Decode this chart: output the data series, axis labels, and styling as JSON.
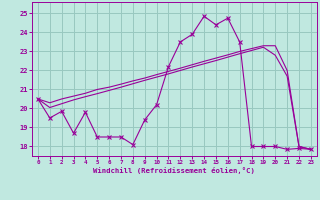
{
  "background_color": "#c0e8e0",
  "grid_color": "#98c8c0",
  "line_color": "#990099",
  "xlim": [
    -0.5,
    23.5
  ],
  "ylim": [
    17.5,
    25.6
  ],
  "xticks": [
    0,
    1,
    2,
    3,
    4,
    5,
    6,
    7,
    8,
    9,
    10,
    11,
    12,
    13,
    14,
    15,
    16,
    17,
    18,
    19,
    20,
    21,
    22,
    23
  ],
  "yticks": [
    18,
    19,
    20,
    21,
    22,
    23,
    24,
    25
  ],
  "xlabel": "Windchill (Refroidissement éolien,°C)",
  "s1_x": [
    0,
    1,
    2,
    3,
    4,
    5,
    6,
    7,
    8,
    9,
    10,
    11,
    12,
    13,
    14,
    15,
    16,
    17,
    18,
    19,
    20,
    21,
    22,
    23
  ],
  "s1_y": [
    20.5,
    19.5,
    19.85,
    18.7,
    19.8,
    18.5,
    18.5,
    18.5,
    18.1,
    19.4,
    20.2,
    22.2,
    23.5,
    23.9,
    24.85,
    24.4,
    24.75,
    23.5,
    18.0,
    18.0,
    18.0,
    17.85,
    17.9,
    17.85
  ],
  "s2_x": [
    0,
    1,
    2,
    3,
    4,
    5,
    6,
    7,
    8,
    9,
    10,
    11,
    12,
    13,
    14,
    15,
    16,
    17,
    18,
    19,
    20,
    21,
    22,
    23
  ],
  "s2_y": [
    20.5,
    20.3,
    20.5,
    20.65,
    20.8,
    21.0,
    21.12,
    21.28,
    21.45,
    21.6,
    21.78,
    21.95,
    22.12,
    22.3,
    22.48,
    22.65,
    22.82,
    23.0,
    23.15,
    23.3,
    23.3,
    22.0,
    18.0,
    17.85
  ],
  "s3_x": [
    0,
    1,
    2,
    3,
    4,
    5,
    6,
    7,
    8,
    9,
    10,
    11,
    12,
    13,
    14,
    15,
    16,
    17,
    18,
    19,
    20,
    21,
    22,
    23
  ],
  "s3_y": [
    20.5,
    20.05,
    20.25,
    20.45,
    20.62,
    20.78,
    20.95,
    21.12,
    21.3,
    21.48,
    21.65,
    21.82,
    22.0,
    22.18,
    22.35,
    22.52,
    22.7,
    22.88,
    23.05,
    23.22,
    22.8,
    21.7,
    18.0,
    17.85
  ]
}
